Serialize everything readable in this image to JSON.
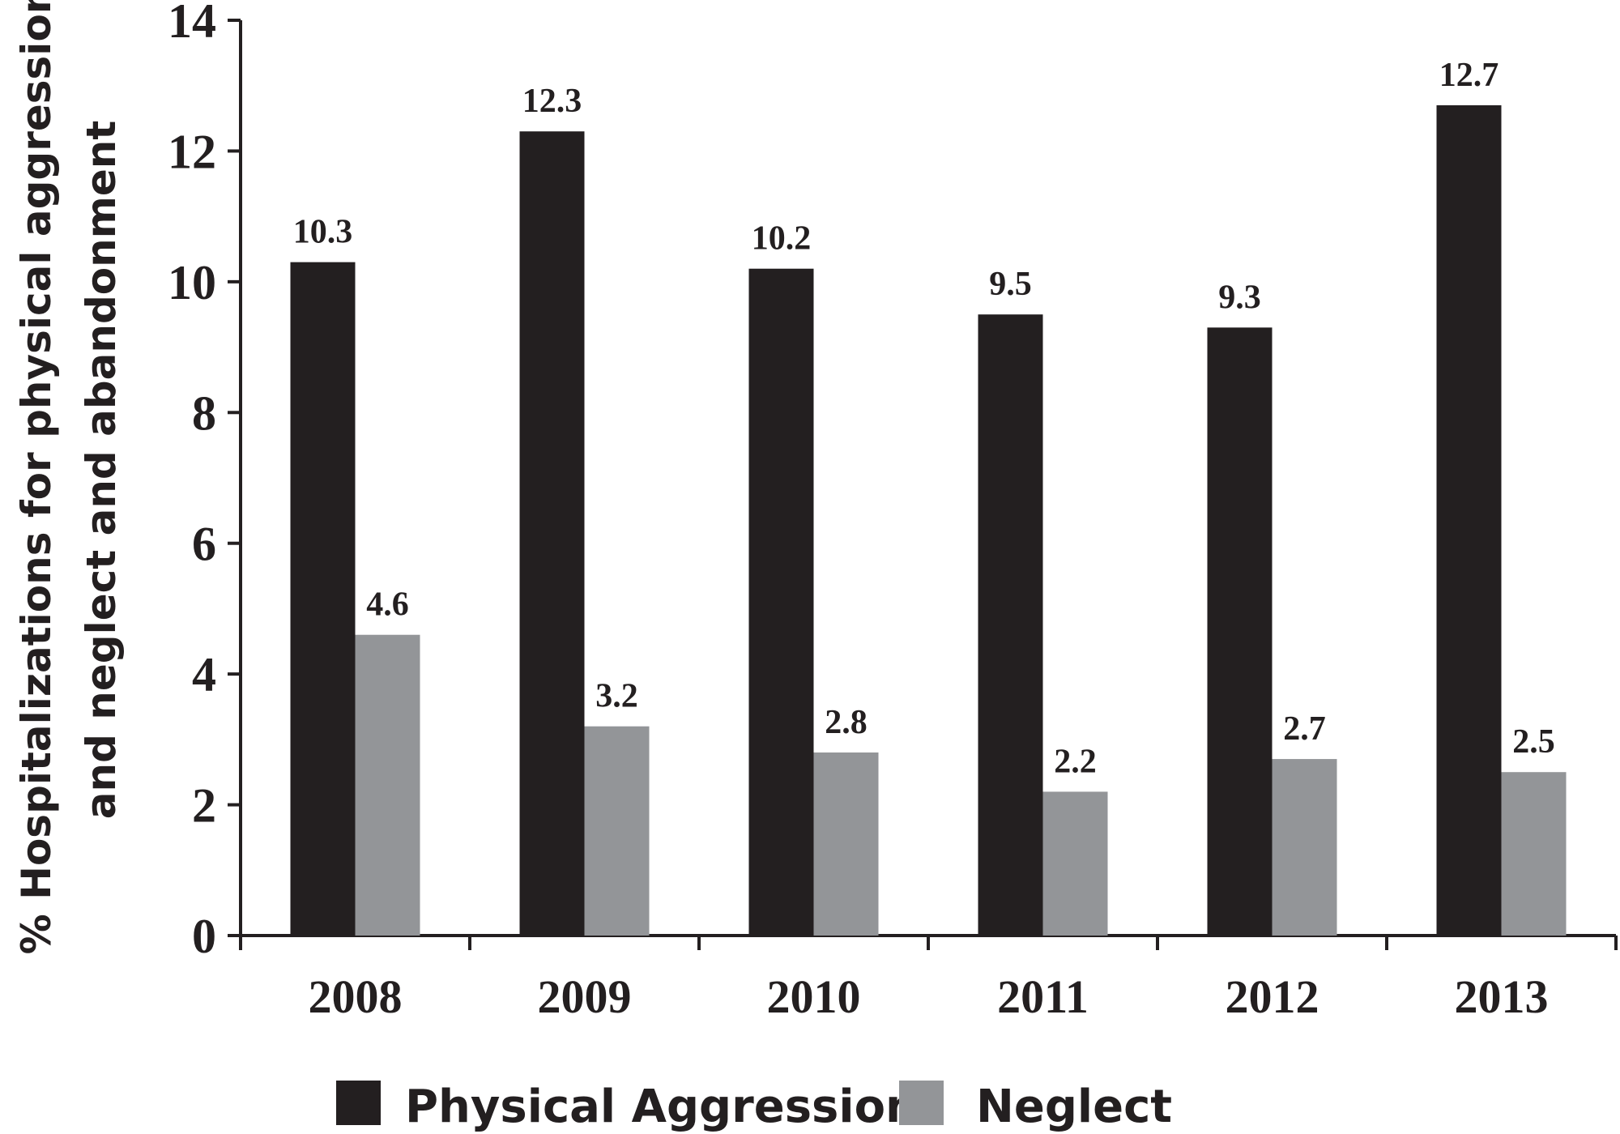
{
  "chart_data": {
    "type": "bar",
    "categories": [
      "2008",
      "2009",
      "2010",
      "2011",
      "2012",
      "2013"
    ],
    "series": [
      {
        "name": "Physical Aggression",
        "color": "#231f20",
        "values": [
          10.3,
          12.3,
          10.2,
          9.5,
          9.3,
          12.7
        ]
      },
      {
        "name": "Neglect",
        "color": "#939598",
        "values": [
          4.6,
          3.2,
          2.8,
          2.2,
          2.7,
          2.5
        ]
      }
    ],
    "ylabel_lines": [
      "% Hospitalizations for physical aggression",
      "and neglect and abandonment"
    ],
    "ylim": [
      0,
      14
    ],
    "yticks": [
      0,
      2,
      4,
      6,
      8,
      10,
      12,
      14
    ],
    "data_labels": true,
    "grid": false,
    "legend_position": "bottom"
  }
}
